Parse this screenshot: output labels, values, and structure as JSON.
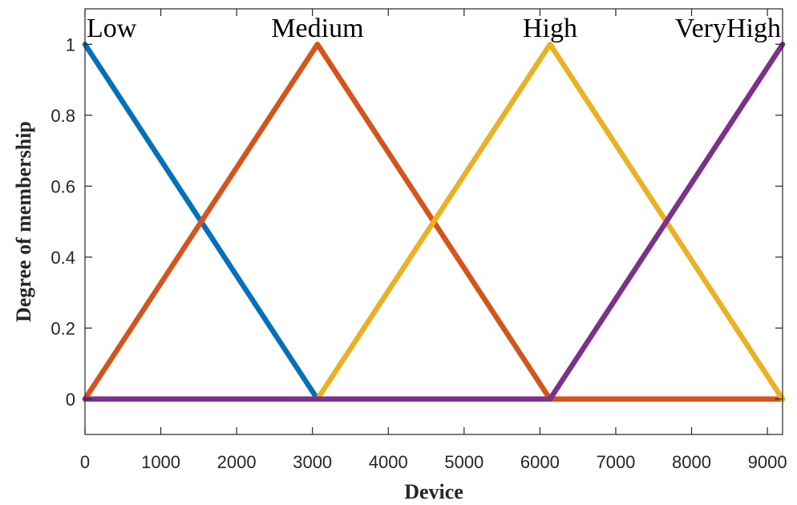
{
  "chart_data": {
    "type": "line",
    "xlabel": "Device",
    "ylabel": "Degree of membership",
    "xlim": [
      0,
      9200
    ],
    "ylim": [
      -0.1,
      1.1
    ],
    "xticks": [
      0,
      1000,
      2000,
      3000,
      4000,
      5000,
      6000,
      7000,
      8000,
      9000
    ],
    "xtick_labels": [
      "0",
      "1000",
      "2000",
      "3000",
      "4000",
      "5000",
      "6000",
      "7000",
      "8000",
      "9000"
    ],
    "yticks": [
      0,
      0.2,
      0.4,
      0.6,
      0.8,
      1
    ],
    "ytick_labels": [
      "0",
      "0.2",
      "0.4",
      "0.6",
      "0.8",
      "1"
    ],
    "grid": false,
    "box": true,
    "series": [
      {
        "name": "Low",
        "color": "#0072BD",
        "points": [
          [
            0,
            1
          ],
          [
            3066,
            0
          ],
          [
            9200,
            0
          ]
        ],
        "label_x": 0
      },
      {
        "name": "Medium",
        "color": "#D95319",
        "points": [
          [
            0,
            0
          ],
          [
            3066,
            1
          ],
          [
            6133,
            0
          ],
          [
            9200,
            0
          ]
        ],
        "label_x": 3066
      },
      {
        "name": "High",
        "color": "#EDB120",
        "points": [
          [
            0,
            0
          ],
          [
            3066,
            0
          ],
          [
            6133,
            1
          ],
          [
            9200,
            0
          ]
        ],
        "label_x": 6133
      },
      {
        "name": "VeryHigh",
        "color": "#7E2F8E",
        "points": [
          [
            0,
            0
          ],
          [
            6133,
            0
          ],
          [
            9200,
            1
          ]
        ],
        "label_x": 9200
      }
    ]
  }
}
